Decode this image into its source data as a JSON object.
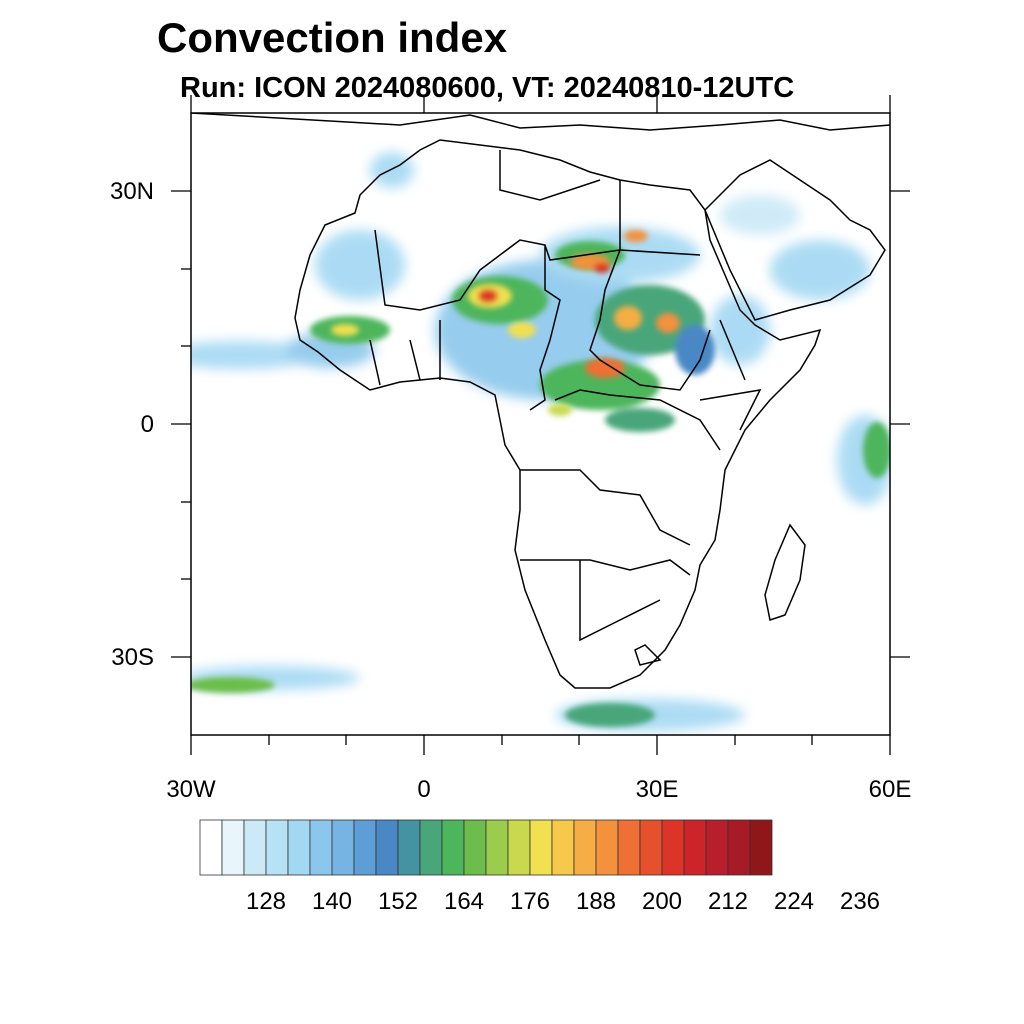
{
  "title": "Convection index",
  "subtitle": "Run: ICON 2024080600,  VT: 20240810-12UTC",
  "map": {
    "region": "Africa",
    "lon_range": [
      -30,
      60
    ],
    "lat_range": [
      -40,
      40
    ],
    "x_ticks": [
      "30W",
      "0",
      "30E",
      "60E"
    ],
    "y_ticks": [
      "30N",
      "0",
      "30S"
    ]
  },
  "colorbar": {
    "tick_labels": [
      "128",
      "140",
      "152",
      "164",
      "176",
      "188",
      "200",
      "212",
      "224",
      "236"
    ],
    "colors": [
      "#ffffff",
      "#e8f6fc",
      "#cbe9f7",
      "#b7e1f5",
      "#a3d8f3",
      "#8bc7ec",
      "#76b4e3",
      "#5d9ed6",
      "#4a88c5",
      "#4493a3",
      "#48a67a",
      "#4db55c",
      "#6cbd4c",
      "#9ccc4c",
      "#c8d94e",
      "#f1e050",
      "#f7c94a",
      "#f6ad43",
      "#f3913d",
      "#ee7034",
      "#e5502d",
      "#dc3528",
      "#cc2428",
      "#b81e2b",
      "#a61b26",
      "#8f1719"
    ]
  }
}
